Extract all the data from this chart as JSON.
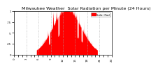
{
  "title": "Milwaukee Weather  Solar Radiation per Minute (24 Hours)",
  "title_fontsize": 4.5,
  "bg_color": "#ffffff",
  "bar_color": "#ff0000",
  "legend_label": "Solar Rad",
  "legend_color": "#ff0000",
  "ylim": [
    0,
    1
  ],
  "num_points": 1440,
  "grid_color": "#aaaaaa",
  "tick_fontsize": 2.8
}
